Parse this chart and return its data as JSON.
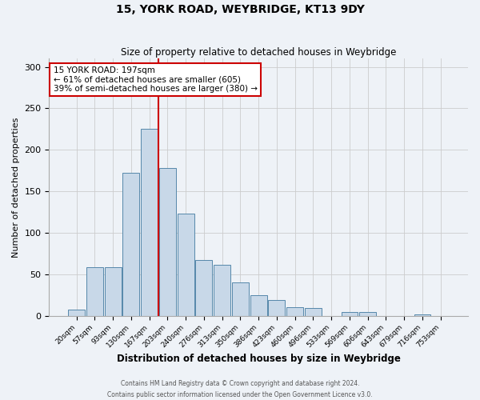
{
  "title": "15, YORK ROAD, WEYBRIDGE, KT13 9DY",
  "subtitle": "Size of property relative to detached houses in Weybridge",
  "xlabel": "Distribution of detached houses by size in Weybridge",
  "ylabel": "Number of detached properties",
  "bin_labels": [
    "20sqm",
    "57sqm",
    "93sqm",
    "130sqm",
    "167sqm",
    "203sqm",
    "240sqm",
    "276sqm",
    "313sqm",
    "350sqm",
    "386sqm",
    "423sqm",
    "460sqm",
    "496sqm",
    "533sqm",
    "569sqm",
    "606sqm",
    "643sqm",
    "679sqm",
    "716sqm",
    "753sqm"
  ],
  "bar_heights": [
    7,
    58,
    58,
    172,
    225,
    178,
    123,
    67,
    61,
    40,
    25,
    19,
    10,
    9,
    0,
    4,
    4,
    0,
    0,
    2,
    0
  ],
  "bar_color": "#c8d8e8",
  "bar_edge_color": "#5588aa",
  "vline_x_index": 5,
  "vline_color": "#cc0000",
  "annotation_text": "15 YORK ROAD: 197sqm\n← 61% of detached houses are smaller (605)\n39% of semi-detached houses are larger (380) →",
  "annotation_box_color": "#ffffff",
  "annotation_box_edge": "#cc0000",
  "ylim": [
    0,
    310
  ],
  "grid_color": "#cccccc",
  "background_color": "#eef2f7",
  "footer_line1": "Contains HM Land Registry data © Crown copyright and database right 2024.",
  "footer_line2": "Contains public sector information licensed under the Open Government Licence v3.0."
}
